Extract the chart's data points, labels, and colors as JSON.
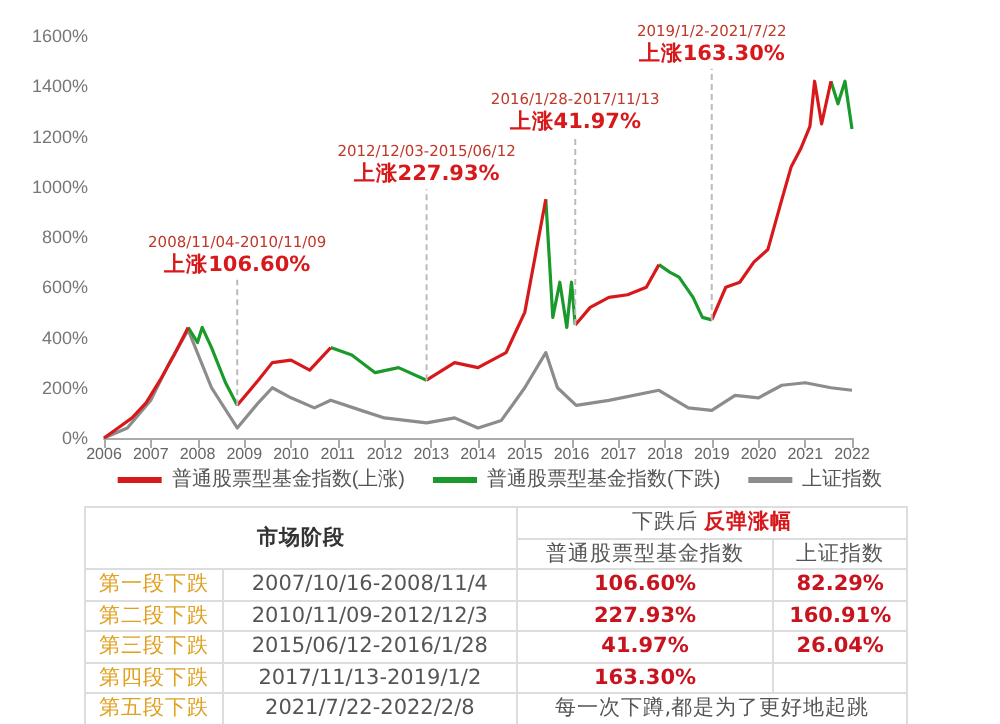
{
  "chart_data": [
    {
      "type": "line",
      "xlim": [
        2006,
        2022
      ],
      "xticks": [
        2006,
        2007,
        2008,
        2009,
        2010,
        2011,
        2012,
        2013,
        2014,
        2015,
        2016,
        2017,
        2018,
        2019,
        2020,
        2021,
        2022
      ],
      "ylim": [
        0,
        1600
      ],
      "yticks": [
        {
          "value": 0,
          "label": "0%"
        },
        {
          "value": 200,
          "label": "200%"
        },
        {
          "value": 400,
          "label": "400%"
        },
        {
          "value": 600,
          "label": "600%"
        },
        {
          "value": 800,
          "label": "800%"
        },
        {
          "value": 1000,
          "label": "1000%"
        },
        {
          "value": 1200,
          "label": "1200%"
        },
        {
          "value": 1400,
          "label": "1400%"
        },
        {
          "value": 1600,
          "label": "1600%"
        }
      ],
      "legend": "bottom",
      "series": [
        {
          "name": "普通股票型基金指数(上涨)",
          "color": "#d7191c",
          "x": [
            2006.0,
            2006.3,
            2006.6,
            2006.9,
            2007.2,
            2007.5,
            2007.8,
            2008.3,
            2008.85,
            2009.3,
            2009.6,
            2010.0,
            2010.4,
            2010.85,
            2011.8,
            2012.9,
            2013.5,
            2014.0,
            2014.6,
            2015.0,
            2015.3,
            2015.45,
            2015.8,
            2016.08,
            2016.4,
            2016.8,
            2017.2,
            2017.6,
            2017.87,
            2018.4,
            2019.0,
            2019.3,
            2019.6,
            2019.9,
            2020.2,
            2020.5,
            2020.7,
            2020.9,
            2021.1,
            2021.2,
            2021.35,
            2021.55
          ],
          "values": [
            0,
            40,
            80,
            140,
            230,
            330,
            440,
            null,
            130,
            230,
            300,
            310,
            270,
            360,
            null,
            230,
            300,
            280,
            340,
            500,
            800,
            950,
            null,
            450,
            520,
            560,
            570,
            600,
            690,
            null,
            470,
            600,
            620,
            700,
            750,
            950,
            1080,
            1150,
            1240,
            1420,
            1250,
            1420
          ]
        },
        {
          "name": "普通股票型基金指数(下跌)",
          "color": "#1a9a2a",
          "x": [
            2007.8,
            2008.0,
            2008.1,
            2008.3,
            2008.6,
            2008.85,
            2009.8,
            2010.85,
            2011.3,
            2011.8,
            2012.3,
            2012.9,
            2014.0,
            2015.45,
            2015.6,
            2015.75,
            2015.9,
            2016.0,
            2016.08,
            2017.0,
            2017.87,
            2018.1,
            2018.3,
            2018.6,
            2018.8,
            2019.0,
            2020.0,
            2021.55,
            2021.7,
            2021.85,
            2022.0
          ],
          "values": [
            440,
            380,
            440,
            360,
            220,
            130,
            null,
            360,
            330,
            260,
            280,
            230,
            null,
            950,
            480,
            620,
            440,
            620,
            450,
            null,
            690,
            660,
            640,
            560,
            480,
            470,
            null,
            1420,
            1330,
            1420,
            1230
          ]
        },
        {
          "name": "上证指数",
          "color": "#8c8c8c",
          "x": [
            2006.0,
            2006.5,
            2007.0,
            2007.4,
            2007.8,
            2008.3,
            2008.85,
            2009.3,
            2009.6,
            2010.0,
            2010.5,
            2010.85,
            2011.5,
            2012.0,
            2012.9,
            2013.5,
            2014.0,
            2014.5,
            2015.0,
            2015.45,
            2015.7,
            2016.1,
            2016.8,
            2017.87,
            2018.5,
            2019.0,
            2019.5,
            2020.0,
            2020.5,
            2021.0,
            2021.55,
            2022.0
          ],
          "values": [
            0,
            40,
            150,
            300,
            430,
            200,
            40,
            140,
            200,
            160,
            120,
            150,
            110,
            80,
            60,
            80,
            40,
            70,
            200,
            340,
            200,
            130,
            150,
            190,
            120,
            110,
            170,
            160,
            210,
            220,
            200,
            190
          ]
        }
      ],
      "annotations": [
        "2008/11/04-2010/11/09",
        {
          "text": "上涨106.60%",
          "x": 2008.85,
          "y": 130
        },
        "2012/12/03-2015/06/12",
        {
          "text": "上涨227.93%",
          "x": 2012.9,
          "y": 230
        },
        "2016/1/28-2017/11/13",
        {
          "text": "上涨41.97%",
          "x": 2016.08,
          "y": 450
        },
        "2019/1/2-2021/7/22",
        {
          "text": "上涨163.30%",
          "x": 2019.0,
          "y": 470
        }
      ]
    },
    {
      "type": "other",
      "annotations": [
        "市场阶段",
        "下跌后",
        "反弹涨幅",
        "普通股票型基金指数",
        "上证指数",
        "第一段下跌",
        "2007/10/16-2008/11/4",
        "106.60%",
        "82.29%",
        "第二段下跌",
        "2010/11/09-2012/12/3",
        "227.93%",
        "160.91%",
        "第三段下跌",
        "2015/06/12-2016/1/28",
        "41.97%",
        "26.04%",
        "第四段下跌",
        "2017/11/13-2019/1/2",
        "163.30%",
        "第五段下跌",
        "2021/7/22-2022/2/8",
        "每一次下蹲,都是为了更好地起跳"
      ]
    }
  ]
}
